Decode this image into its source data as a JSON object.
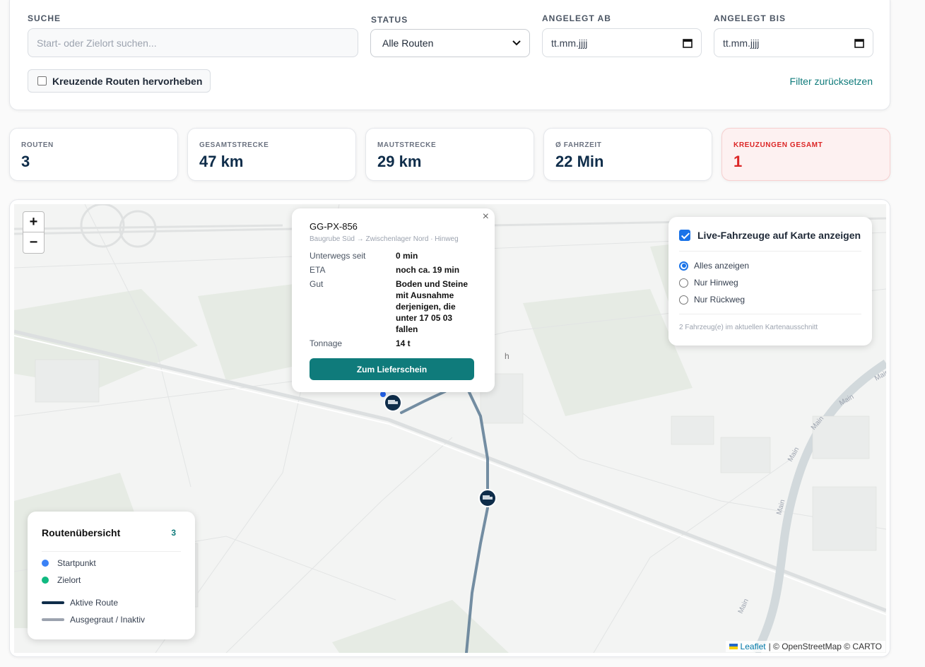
{
  "filters": {
    "search": {
      "label": "SUCHE",
      "placeholder": "Start- oder Zielort suchen..."
    },
    "status": {
      "label": "STATUS",
      "value": "Alle Routen"
    },
    "created_from": {
      "label": "ANGELEGT AB",
      "placeholder": "tt.mm.jjjj"
    },
    "created_to": {
      "label": "ANGELEGT BIS",
      "placeholder": "tt.mm.jjjj"
    },
    "highlight_crossing": {
      "label": "Kreuzende Routen hervorheben",
      "checked": false
    },
    "reset": "Filter zurücksetzen"
  },
  "stats": [
    {
      "label": "ROUTEN",
      "value": "3"
    },
    {
      "label": "GESAMTSTRECKE",
      "value": "47 km"
    },
    {
      "label": "MAUTSTRECKE",
      "value": "29 km"
    },
    {
      "label": "Ø FAHRZEIT",
      "value": "22 Min"
    },
    {
      "label": "KREUZUNGEN GESAMT",
      "value": "1"
    }
  ],
  "map": {
    "zoom_in": "+",
    "zoom_out": "−",
    "popup": {
      "close": "×",
      "title": "GG-PX-856",
      "subtitle": "Baugrube Süd → Zwischenlager Nord · Hinweg",
      "rows": [
        {
          "label": "Unterwegs seit",
          "value": "0 min"
        },
        {
          "label": "ETA",
          "value": "noch ca. 19 min"
        },
        {
          "label": "Gut",
          "value": "Boden und Steine mit Ausnahme derjenigen, die unter 17 05 03 fallen"
        },
        {
          "label": "Tonnage",
          "value": "14 t"
        }
      ],
      "button": "Zum Lieferschein"
    },
    "layers": {
      "toggle": {
        "label": "Live-Fahrzeuge auf Karte anzeigen",
        "checked": true
      },
      "options": [
        {
          "label": "Alles anzeigen",
          "selected": true
        },
        {
          "label": "Nur Hinweg",
          "selected": false
        },
        {
          "label": "Nur Rückweg",
          "selected": false
        }
      ],
      "note": "2 Fahrzeug(e) im aktuellen Kartenausschnitt"
    },
    "legend": {
      "title": "Routenübersicht",
      "count": "3",
      "items": [
        "Startpunkt",
        "Zielort",
        "Aktive Route",
        "Ausgegraut / Inaktiv"
      ]
    },
    "attribution": {
      "leaflet": "Leaflet",
      "rest": "| © OpenStreetMap © CARTO"
    },
    "labels": [
      "Main",
      "Main",
      "Main",
      "Main",
      "Main",
      "Main",
      "h"
    ]
  }
}
